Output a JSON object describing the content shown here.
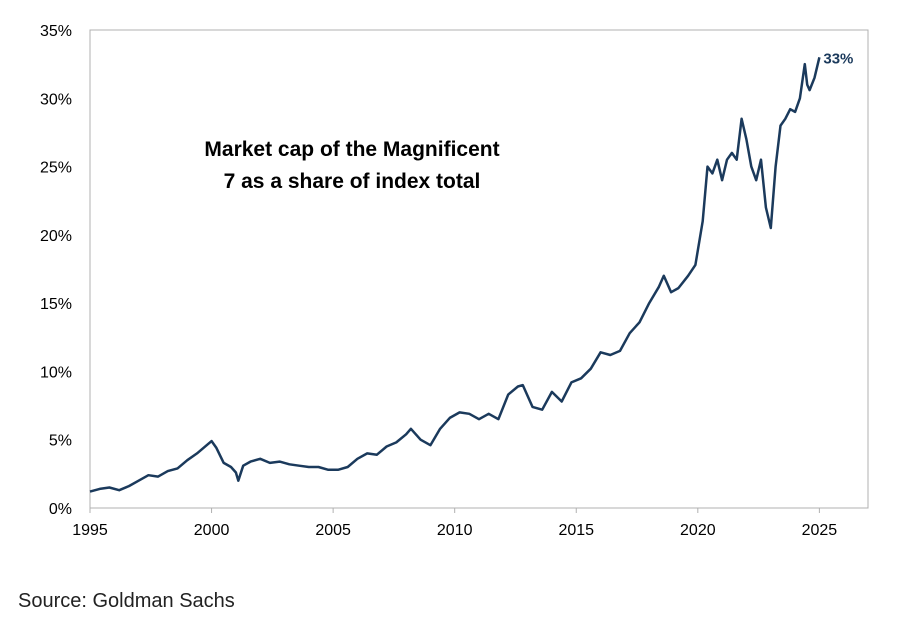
{
  "chart_data": {
    "type": "line",
    "title_lines": [
      "Market cap of the Magnificent",
      "7 as a share of index total"
    ],
    "xlim": [
      1995,
      2027
    ],
    "ylim": [
      0,
      35
    ],
    "x_ticks": [
      1995,
      2000,
      2005,
      2010,
      2015,
      2020,
      2025
    ],
    "x_tick_labels": [
      "1995",
      "2000",
      "2005",
      "2010",
      "2015",
      "2020",
      "2025"
    ],
    "y_ticks": [
      0,
      5,
      10,
      15,
      20,
      25,
      30,
      35
    ],
    "y_tick_labels": [
      "0%",
      "5%",
      "10%",
      "15%",
      "20%",
      "25%",
      "30%",
      "35%"
    ],
    "grid": false,
    "line_color": "#1b3a5c",
    "end_label": "33%",
    "series": [
      {
        "x": [
          1995.0,
          1995.4,
          1995.8,
          1996.2,
          1996.6,
          1997.0,
          1997.4,
          1997.8,
          1998.2,
          1998.6,
          1999.0,
          1999.4,
          1999.8,
          2000.0,
          2000.2,
          2000.5,
          2000.8,
          2001.0,
          2001.1,
          2001.3,
          2001.6,
          2002.0,
          2002.4,
          2002.8,
          2003.2,
          2003.6,
          2004.0,
          2004.4,
          2004.8,
          2005.2,
          2005.6,
          2006.0,
          2006.4,
          2006.8,
          2007.2,
          2007.6,
          2008.0,
          2008.2,
          2008.6,
          2009.0,
          2009.4,
          2009.8,
          2010.2,
          2010.6,
          2011.0,
          2011.4,
          2011.8,
          2012.2,
          2012.6,
          2012.8,
          2013.2,
          2013.6,
          2014.0,
          2014.4,
          2014.8,
          2015.2,
          2015.6,
          2016.0,
          2016.4,
          2016.8,
          2017.2,
          2017.6,
          2018.0,
          2018.4,
          2018.6,
          2018.9,
          2019.2,
          2019.6,
          2019.9,
          2020.2,
          2020.4,
          2020.6,
          2020.8,
          2021.0,
          2021.2,
          2021.4,
          2021.6,
          2021.8,
          2022.0,
          2022.2,
          2022.4,
          2022.6,
          2022.8,
          2023.0,
          2023.2,
          2023.4,
          2023.6,
          2023.8,
          2024.0,
          2024.2,
          2024.4,
          2024.5,
          2024.6,
          2024.8,
          2025.0
        ],
        "y": [
          1.2,
          1.4,
          1.5,
          1.3,
          1.6,
          2.0,
          2.4,
          2.3,
          2.7,
          2.9,
          3.5,
          4.0,
          4.6,
          4.9,
          4.4,
          3.3,
          3.0,
          2.6,
          2.0,
          3.1,
          3.4,
          3.6,
          3.3,
          3.4,
          3.2,
          3.1,
          3.0,
          3.0,
          2.8,
          2.8,
          3.0,
          3.6,
          4.0,
          3.9,
          4.5,
          4.8,
          5.4,
          5.8,
          5.0,
          4.6,
          5.8,
          6.6,
          7.0,
          6.9,
          6.5,
          6.9,
          6.5,
          8.3,
          8.9,
          9.0,
          7.4,
          7.2,
          8.5,
          7.8,
          9.2,
          9.5,
          10.2,
          11.4,
          11.2,
          11.5,
          12.8,
          13.6,
          15.0,
          16.2,
          17.0,
          15.8,
          16.1,
          17.0,
          17.8,
          21.0,
          25.0,
          24.5,
          25.5,
          24.0,
          25.5,
          26.0,
          25.5,
          28.5,
          27.0,
          25.0,
          24.0,
          25.5,
          22.0,
          20.5,
          25.0,
          28.0,
          28.5,
          29.2,
          29.0,
          30.0,
          32.5,
          31.0,
          30.6,
          31.5,
          33.0
        ]
      }
    ]
  },
  "source": "Source: Goldman Sachs"
}
